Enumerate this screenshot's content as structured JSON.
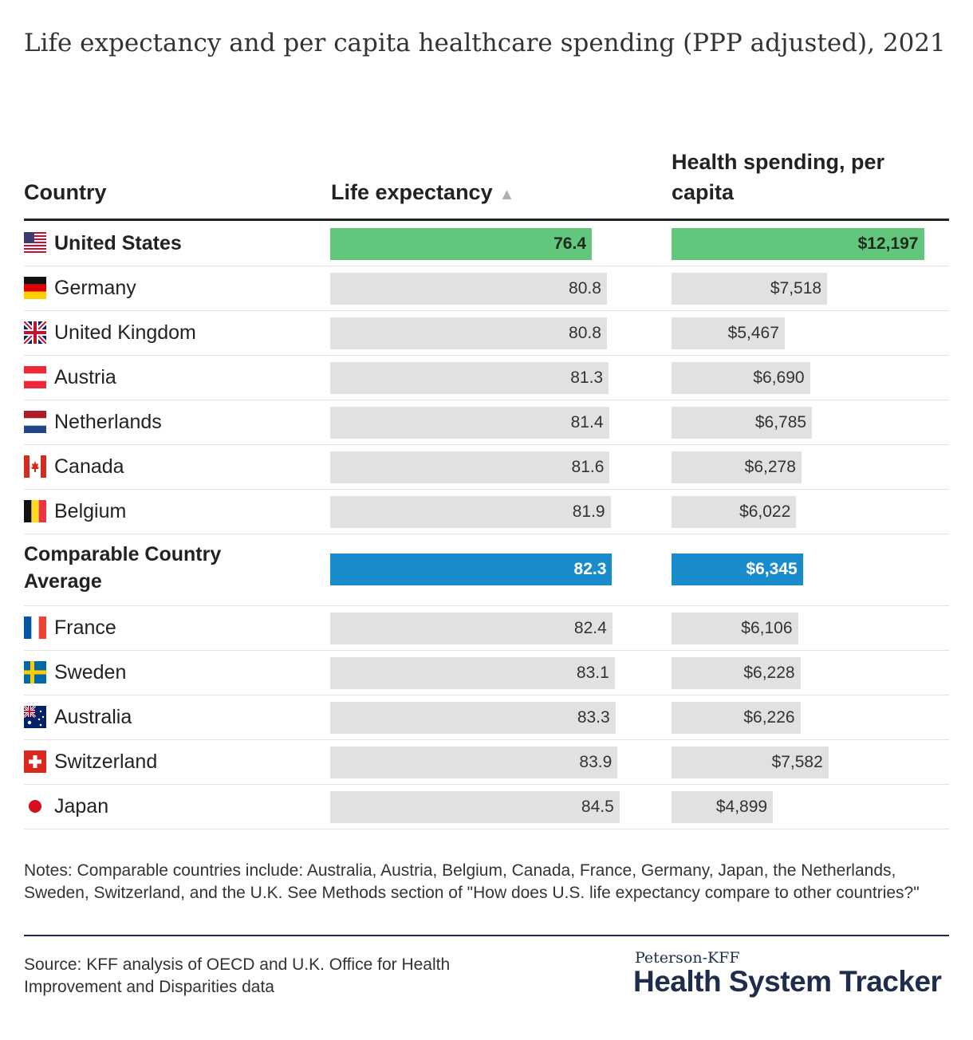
{
  "title": "Life expectancy and per capita healthcare spending (PPP adjusted), 2021",
  "headers": {
    "country": "Country",
    "life_expectancy": "Life expectancy",
    "life_expectancy_sort_icon": "▲",
    "spending": "Health spending, per capita"
  },
  "chart_data": {
    "type": "table",
    "title": "Life expectancy and per capita healthcare spending (PPP adjusted), 2021",
    "columns": [
      "Country",
      "Life expectancy",
      "Health spending, per capita"
    ],
    "sorted_by": "Life expectancy (ascending)",
    "rows": [
      {
        "country": "United States",
        "flag": "us-flag",
        "life_expectancy": 76.4,
        "life_expectancy_label": "76.4",
        "spending": 12197,
        "spending_label": "$12,197",
        "highlight": "green"
      },
      {
        "country": "Germany",
        "flag": "germany-flag",
        "life_expectancy": 80.8,
        "life_expectancy_label": "80.8",
        "spending": 7518,
        "spending_label": "$7,518",
        "highlight": "none"
      },
      {
        "country": "United Kingdom",
        "flag": "uk-flag",
        "life_expectancy": 80.8,
        "life_expectancy_label": "80.8",
        "spending": 5467,
        "spending_label": "$5,467",
        "highlight": "none"
      },
      {
        "country": "Austria",
        "flag": "austria-flag",
        "life_expectancy": 81.3,
        "life_expectancy_label": "81.3",
        "spending": 6690,
        "spending_label": "$6,690",
        "highlight": "none"
      },
      {
        "country": "Netherlands",
        "flag": "netherlands-flag",
        "life_expectancy": 81.4,
        "life_expectancy_label": "81.4",
        "spending": 6785,
        "spending_label": "$6,785",
        "highlight": "none"
      },
      {
        "country": "Canada",
        "flag": "canada-flag",
        "life_expectancy": 81.6,
        "life_expectancy_label": "81.6",
        "spending": 6278,
        "spending_label": "$6,278",
        "highlight": "none"
      },
      {
        "country": "Belgium",
        "flag": "belgium-flag",
        "life_expectancy": 81.9,
        "life_expectancy_label": "81.9",
        "spending": 6022,
        "spending_label": "$6,022",
        "highlight": "none"
      },
      {
        "country": "Comparable Country Average",
        "flag": "",
        "life_expectancy": 82.3,
        "life_expectancy_label": "82.3",
        "spending": 6345,
        "spending_label": "$6,345",
        "highlight": "blue"
      },
      {
        "country": "France",
        "flag": "france-flag",
        "life_expectancy": 82.4,
        "life_expectancy_label": "82.4",
        "spending": 6106,
        "spending_label": "$6,106",
        "highlight": "none"
      },
      {
        "country": "Sweden",
        "flag": "sweden-flag",
        "life_expectancy": 83.1,
        "life_expectancy_label": "83.1",
        "spending": 6228,
        "spending_label": "$6,228",
        "highlight": "none"
      },
      {
        "country": "Australia",
        "flag": "australia-flag",
        "life_expectancy": 83.3,
        "life_expectancy_label": "83.3",
        "spending": 6226,
        "spending_label": "$6,226",
        "highlight": "none"
      },
      {
        "country": "Switzerland",
        "flag": "switzerland-flag",
        "life_expectancy": 83.9,
        "life_expectancy_label": "83.9",
        "spending": 7582,
        "spending_label": "$7,582",
        "highlight": "none"
      },
      {
        "country": "Japan",
        "flag": "japan-flag",
        "life_expectancy": 84.5,
        "life_expectancy_label": "84.5",
        "spending": 4899,
        "spending_label": "$4,899",
        "highlight": "none"
      }
    ]
  },
  "colors": {
    "highlight_green": "#63c67d",
    "highlight_blue": "#1a8bcb",
    "bar_grey": "#dfe1e3",
    "brand_navy": "#1f2d4d"
  },
  "notes": "Notes: Comparable countries include: Australia, Austria, Belgium, Canada, France, Germany, Japan, the Netherlands, Sweden, Switzerland, and the U.K. See Methods section of \"How does U.S. life expectancy compare to other countries?\"",
  "source": "Source: KFF analysis of OECD and U.K. Office for Health Improvement and Disparities data",
  "brand": {
    "top": "Peterson-KFF",
    "main": "Health System Tracker"
  }
}
